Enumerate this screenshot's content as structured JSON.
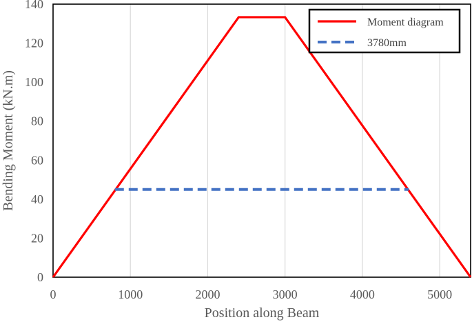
{
  "chart_data": {
    "type": "line",
    "xlabel": "Position along Beam",
    "ylabel": "Bending Moment (kN.m)",
    "xlim": [
      0,
      5400
    ],
    "ylim": [
      0,
      140
    ],
    "x_ticks": [
      0,
      1000,
      2000,
      3000,
      4000,
      5000
    ],
    "y_ticks": [
      0,
      20,
      40,
      60,
      80,
      100,
      120,
      140
    ],
    "grid": {
      "vertical": true,
      "horizontal": false
    },
    "legend_position": "top-right",
    "series": [
      {
        "name": "Moment diagram",
        "color": "#ff0000",
        "style": "solid",
        "points": [
          [
            0,
            0
          ],
          [
            2400,
            133.3
          ],
          [
            3000,
            133.3
          ],
          [
            5400,
            0
          ]
        ]
      },
      {
        "name": "3780mm",
        "color": "#4472c4",
        "style": "dashed",
        "points": [
          [
            800,
            45
          ],
          [
            4600,
            45
          ]
        ]
      }
    ]
  }
}
